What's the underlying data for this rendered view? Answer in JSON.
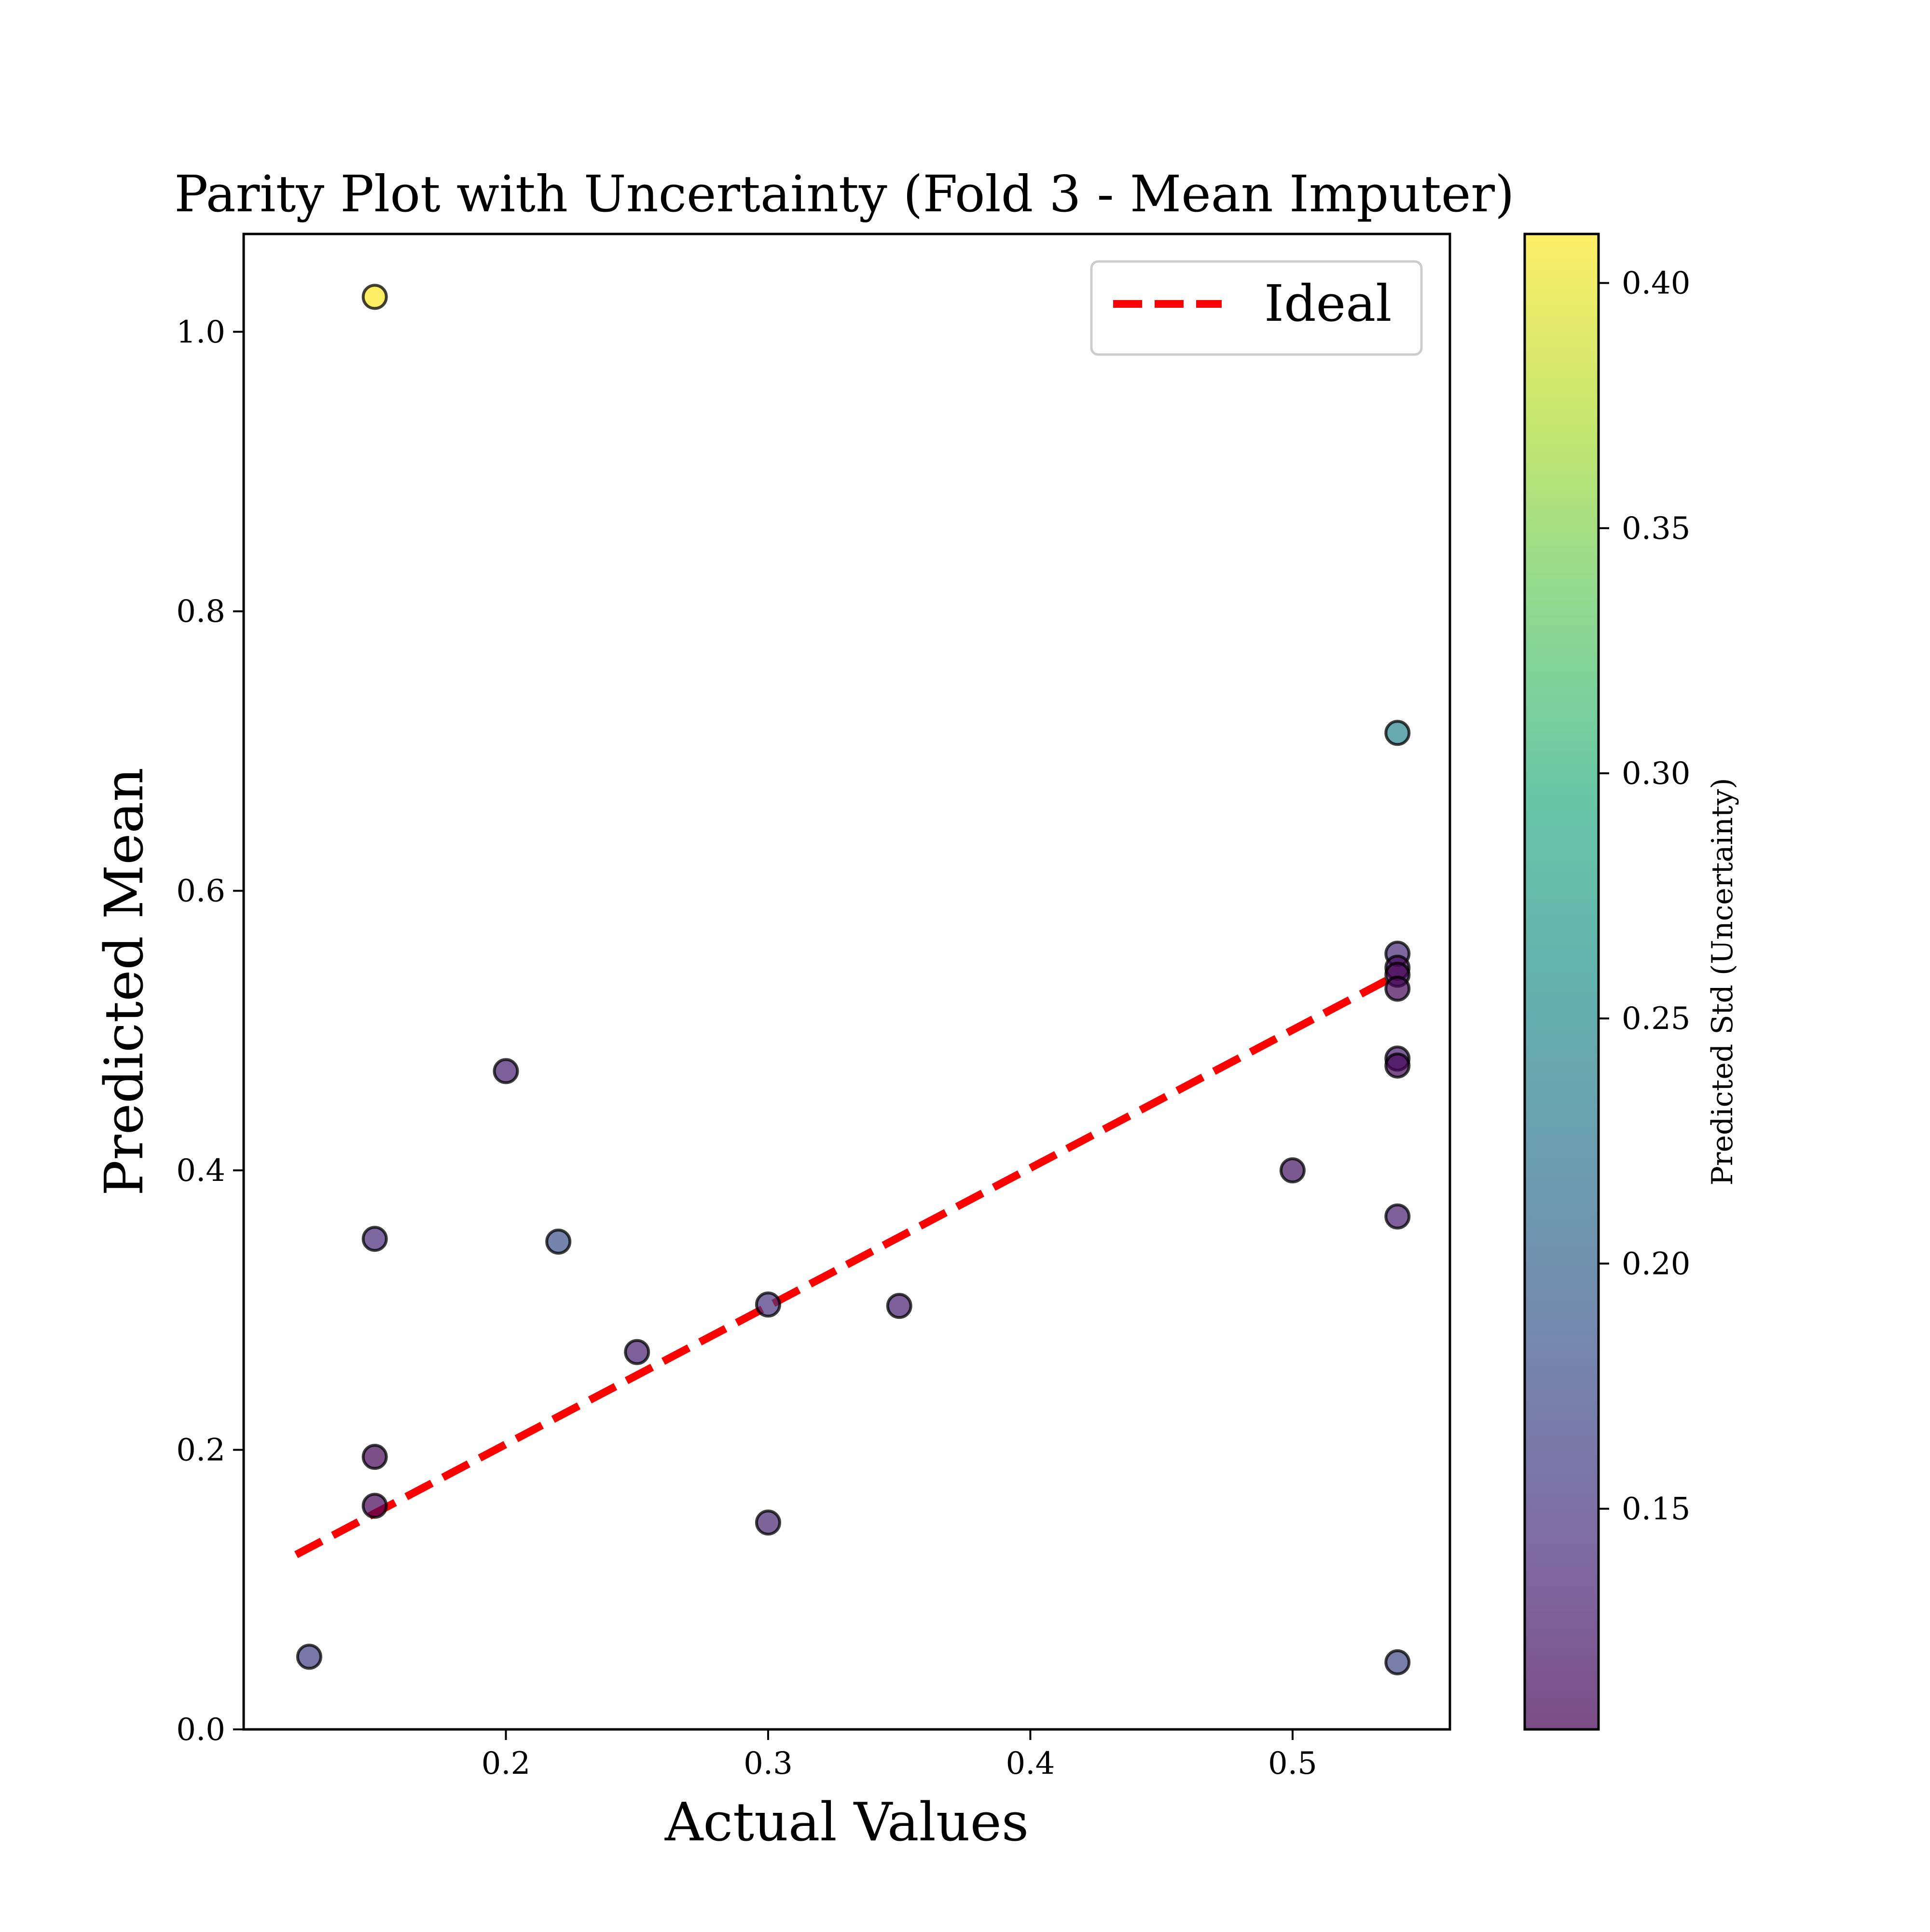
{
  "chart_data": {
    "type": "scatter",
    "title": "Parity Plot with Uncertainty (Fold 3 - Mean Imputer)",
    "xlabel": "Actual Values",
    "ylabel": "Predicted Mean",
    "xlim": [
      0.1,
      0.56
    ],
    "ylim": [
      0.0,
      1.07
    ],
    "x_ticks": [
      0.2,
      0.3,
      0.4,
      0.5
    ],
    "x_tick_labels": [
      "0.2",
      "0.3",
      "0.4",
      "0.5"
    ],
    "y_ticks": [
      0.0,
      0.2,
      0.4,
      0.6,
      0.8,
      1.0
    ],
    "y_tick_labels": [
      "0.0",
      "0.2",
      "0.4",
      "0.6",
      "0.8",
      "1.0"
    ],
    "grid": false,
    "legend": {
      "position": "top-right",
      "entries": [
        {
          "label": "Ideal",
          "style": "dashed-line",
          "color": "#ff0000"
        }
      ]
    },
    "ideal_line": {
      "x": [
        0.12,
        0.54
      ],
      "y": [
        0.125,
        0.54
      ],
      "color": "#ff0000"
    },
    "colorbar": {
      "label": "Predicted Std (Uncertainty)",
      "colormap": "viridis",
      "range": [
        0.105,
        0.41
      ],
      "ticks": [
        0.15,
        0.2,
        0.25,
        0.3,
        0.35,
        0.4
      ],
      "tick_labels": [
        "0.15",
        "0.20",
        "0.25",
        "0.30",
        "0.35",
        "0.40"
      ]
    },
    "points": [
      {
        "x": 0.15,
        "y": 1.025,
        "std": 0.41
      },
      {
        "x": 0.54,
        "y": 0.713,
        "std": 0.245
      },
      {
        "x": 0.54,
        "y": 0.555,
        "std": 0.14
      },
      {
        "x": 0.54,
        "y": 0.545,
        "std": 0.11
      },
      {
        "x": 0.54,
        "y": 0.54,
        "std": 0.108
      },
      {
        "x": 0.54,
        "y": 0.53,
        "std": 0.108
      },
      {
        "x": 0.54,
        "y": 0.48,
        "std": 0.13
      },
      {
        "x": 0.54,
        "y": 0.475,
        "std": 0.108
      },
      {
        "x": 0.54,
        "y": 0.367,
        "std": 0.13
      },
      {
        "x": 0.54,
        "y": 0.048,
        "std": 0.17
      },
      {
        "x": 0.2,
        "y": 0.471,
        "std": 0.13
      },
      {
        "x": 0.5,
        "y": 0.4,
        "std": 0.12
      },
      {
        "x": 0.15,
        "y": 0.351,
        "std": 0.14
      },
      {
        "x": 0.22,
        "y": 0.349,
        "std": 0.18
      },
      {
        "x": 0.3,
        "y": 0.304,
        "std": 0.15
      },
      {
        "x": 0.35,
        "y": 0.303,
        "std": 0.13
      },
      {
        "x": 0.25,
        "y": 0.27,
        "std": 0.13
      },
      {
        "x": 0.15,
        "y": 0.195,
        "std": 0.108
      },
      {
        "x": 0.15,
        "y": 0.16,
        "std": 0.108
      },
      {
        "x": 0.3,
        "y": 0.148,
        "std": 0.135
      },
      {
        "x": 0.125,
        "y": 0.052,
        "std": 0.16
      }
    ]
  }
}
